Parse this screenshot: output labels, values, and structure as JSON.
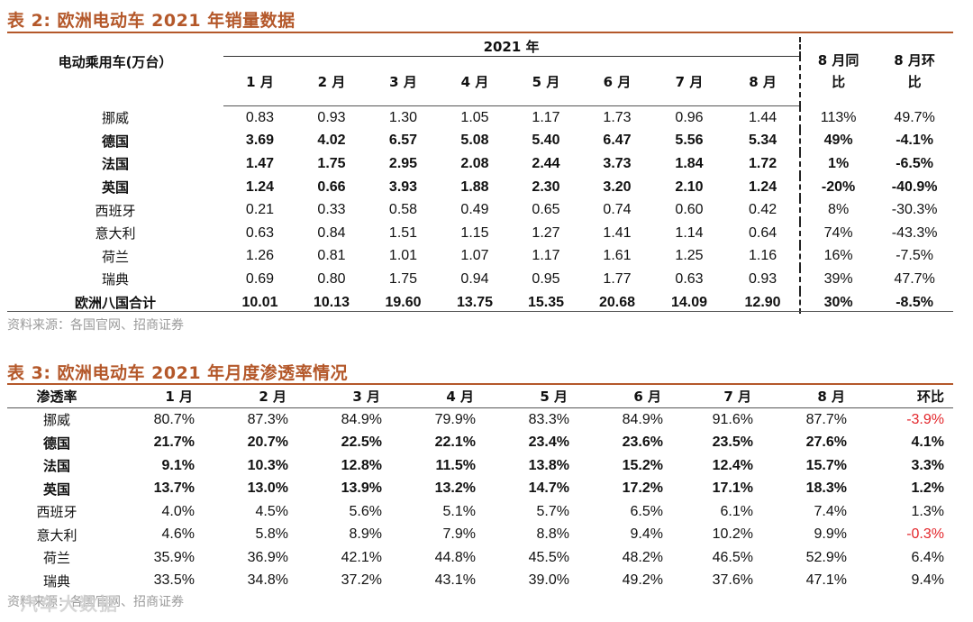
{
  "table2": {
    "title": "表 2: 欧洲电动车 2021 年销量数据",
    "corner": "电动乘用车(万台）",
    "year_label": "2021 年",
    "months": [
      "1 月",
      "2 月",
      "3 月",
      "4 月",
      "5 月",
      "6 月",
      "7 月",
      "8 月"
    ],
    "yoy_label_1": "8 月同",
    "yoy_label_2": "比",
    "mom_label_1": "8 月环",
    "mom_label_2": "比",
    "rows": [
      {
        "country": "挪威",
        "bold": false,
        "values": [
          "0.83",
          "0.93",
          "1.30",
          "1.05",
          "1.17",
          "1.73",
          "0.96",
          "1.44"
        ],
        "yoy": "113%",
        "mom": "49.7%"
      },
      {
        "country": "德国",
        "bold": true,
        "values": [
          "3.69",
          "4.02",
          "6.57",
          "5.08",
          "5.40",
          "6.47",
          "5.56",
          "5.34"
        ],
        "yoy": "49%",
        "mom": "-4.1%"
      },
      {
        "country": "法国",
        "bold": true,
        "values": [
          "1.47",
          "1.75",
          "2.95",
          "2.08",
          "2.44",
          "3.73",
          "1.84",
          "1.72"
        ],
        "yoy": "1%",
        "mom": "-6.5%"
      },
      {
        "country": "英国",
        "bold": true,
        "values": [
          "1.24",
          "0.66",
          "3.93",
          "1.88",
          "2.30",
          "3.20",
          "2.10",
          "1.24"
        ],
        "yoy": "-20%",
        "mom": "-40.9%"
      },
      {
        "country": "西班牙",
        "bold": false,
        "values": [
          "0.21",
          "0.33",
          "0.58",
          "0.49",
          "0.65",
          "0.74",
          "0.60",
          "0.42"
        ],
        "yoy": "8%",
        "mom": "-30.3%"
      },
      {
        "country": "意大利",
        "bold": false,
        "values": [
          "0.63",
          "0.84",
          "1.51",
          "1.15",
          "1.27",
          "1.41",
          "1.14",
          "0.64"
        ],
        "yoy": "74%",
        "mom": "-43.3%"
      },
      {
        "country": "荷兰",
        "bold": false,
        "values": [
          "1.26",
          "0.81",
          "1.01",
          "1.07",
          "1.17",
          "1.61",
          "1.25",
          "1.16"
        ],
        "yoy": "16%",
        "mom": "-7.5%"
      },
      {
        "country": "瑞典",
        "bold": false,
        "values": [
          "0.69",
          "0.80",
          "1.75",
          "0.94",
          "0.95",
          "1.77",
          "0.63",
          "0.93"
        ],
        "yoy": "39%",
        "mom": "47.7%"
      },
      {
        "country": "欧洲八国合计",
        "bold": true,
        "values": [
          "10.01",
          "10.13",
          "19.60",
          "13.75",
          "15.35",
          "20.68",
          "14.09",
          "12.90"
        ],
        "yoy": "30%",
        "mom": "-8.5%"
      }
    ],
    "source": "资料来源：各国官网、招商证券"
  },
  "table3": {
    "title": "表 3: 欧洲电动车 2021 年月度渗透率情况",
    "corner": "渗透率",
    "months": [
      "1 月",
      "2 月",
      "3 月",
      "4 月",
      "5 月",
      "6 月",
      "7 月",
      "8 月"
    ],
    "mom_label": "环比",
    "rows": [
      {
        "country": "挪威",
        "bold": false,
        "values": [
          "80.7%",
          "87.3%",
          "84.9%",
          "79.9%",
          "83.3%",
          "84.9%",
          "91.6%",
          "87.7%"
        ],
        "mom": "-3.9%",
        "neg": true
      },
      {
        "country": "德国",
        "bold": true,
        "values": [
          "21.7%",
          "20.7%",
          "22.5%",
          "22.1%",
          "23.4%",
          "23.6%",
          "23.5%",
          "27.6%"
        ],
        "mom": "4.1%",
        "neg": false
      },
      {
        "country": "法国",
        "bold": true,
        "values": [
          "9.1%",
          "10.3%",
          "12.8%",
          "11.5%",
          "13.8%",
          "15.2%",
          "12.4%",
          "15.7%"
        ],
        "mom": "3.3%",
        "neg": false
      },
      {
        "country": "英国",
        "bold": true,
        "values": [
          "13.7%",
          "13.0%",
          "13.9%",
          "13.2%",
          "14.7%",
          "17.2%",
          "17.1%",
          "18.3%"
        ],
        "mom": "1.2%",
        "neg": false
      },
      {
        "country": "西班牙",
        "bold": false,
        "values": [
          "4.0%",
          "4.5%",
          "5.6%",
          "5.1%",
          "5.7%",
          "6.5%",
          "6.1%",
          "7.4%"
        ],
        "mom": "1.3%",
        "neg": false
      },
      {
        "country": "意大利",
        "bold": false,
        "values": [
          "4.6%",
          "5.8%",
          "8.9%",
          "7.9%",
          "8.8%",
          "9.4%",
          "10.2%",
          "9.9%"
        ],
        "mom": "-0.3%",
        "neg": true
      },
      {
        "country": "荷兰",
        "bold": false,
        "values": [
          "35.9%",
          "36.9%",
          "42.1%",
          "44.8%",
          "45.5%",
          "48.2%",
          "46.5%",
          "52.9%"
        ],
        "mom": "6.4%",
        "neg": false
      },
      {
        "country": "瑞典",
        "bold": false,
        "values": [
          "33.5%",
          "34.8%",
          "37.2%",
          "43.1%",
          "39.0%",
          "49.2%",
          "37.6%",
          "47.1%"
        ],
        "mom": "9.4%",
        "neg": false
      }
    ],
    "source": "资料来源：各国官网、招商证券",
    "watermark": "汽车大数据"
  },
  "colors": {
    "title": "#b4582a",
    "negative": "#e3262b",
    "source": "#9a9a9a"
  }
}
